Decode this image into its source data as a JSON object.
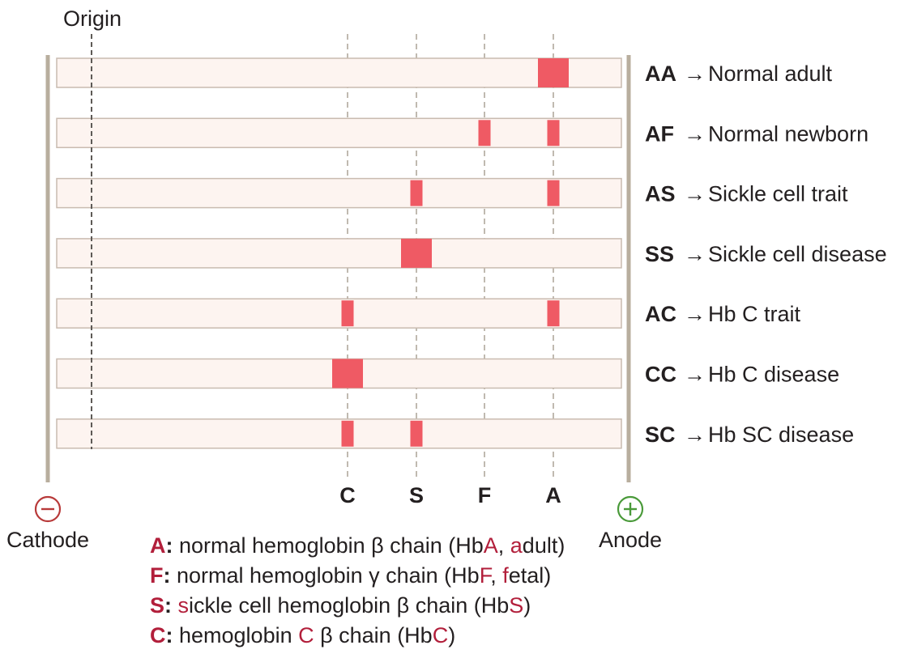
{
  "origin_label": "Origin",
  "cathode": {
    "label": "Cathode",
    "symbol": "−",
    "color": "#b83a3a"
  },
  "anode": {
    "label": "Anode",
    "symbol": "+",
    "color": "#4a9a3a"
  },
  "colors": {
    "band": "#ef5a64",
    "lane_fill": "#fdf4f0",
    "lane_stroke": "#c9bbb0",
    "electrode": "#b8ae9e",
    "guide": "#b0a89c",
    "highlight": "#b21f3b"
  },
  "markers": [
    {
      "key": "C",
      "pos": 0
    },
    {
      "key": "S",
      "pos": 1
    },
    {
      "key": "F",
      "pos": 2
    },
    {
      "key": "A",
      "pos": 3
    }
  ],
  "lanes": [
    {
      "genotype": "AA",
      "arrow": "→",
      "description": "Normal adult",
      "bands": [
        {
          "marker": "A",
          "size": "large"
        }
      ]
    },
    {
      "genotype": "AF",
      "arrow": "→",
      "description": "Normal newborn",
      "bands": [
        {
          "marker": "F",
          "size": "small"
        },
        {
          "marker": "A",
          "size": "small"
        }
      ]
    },
    {
      "genotype": "AS",
      "arrow": "→",
      "description": "Sickle cell trait",
      "bands": [
        {
          "marker": "S",
          "size": "small"
        },
        {
          "marker": "A",
          "size": "small"
        }
      ]
    },
    {
      "genotype": "SS",
      "arrow": "→",
      "description": "Sickle cell disease",
      "bands": [
        {
          "marker": "S",
          "size": "large"
        }
      ]
    },
    {
      "genotype": "AC",
      "arrow": "→",
      "description": "Hb C trait",
      "bands": [
        {
          "marker": "C",
          "size": "small"
        },
        {
          "marker": "A",
          "size": "small"
        }
      ]
    },
    {
      "genotype": "CC",
      "arrow": "→",
      "description": "Hb C disease",
      "bands": [
        {
          "marker": "C",
          "size": "large"
        }
      ]
    },
    {
      "genotype": "SC",
      "arrow": "→",
      "description": "Hb SC disease",
      "bands": [
        {
          "marker": "C",
          "size": "small"
        },
        {
          "marker": "S",
          "size": "small"
        }
      ]
    }
  ],
  "legend": [
    {
      "key": "A",
      "sep": ":",
      "parts": [
        {
          "text": " normal hemoglobin β chain (Hb",
          "hl": false
        },
        {
          "text": "A",
          "hl": true
        },
        {
          "text": ", ",
          "hl": false
        },
        {
          "text": "a",
          "hl": true
        },
        {
          "text": "dult)",
          "hl": false
        }
      ]
    },
    {
      "key": "F",
      "sep": ":",
      "parts": [
        {
          "text": " normal hemoglobin γ chain (Hb",
          "hl": false
        },
        {
          "text": "F",
          "hl": true
        },
        {
          "text": ", ",
          "hl": false
        },
        {
          "text": "f",
          "hl": true
        },
        {
          "text": "etal)",
          "hl": false
        }
      ]
    },
    {
      "key": "S",
      "sep": ":",
      "parts": [
        {
          "text": " ",
          "hl": false
        },
        {
          "text": "s",
          "hl": true
        },
        {
          "text": "ickle cell hemoglobin β chain (Hb",
          "hl": false
        },
        {
          "text": "S",
          "hl": true
        },
        {
          "text": ")",
          "hl": false
        }
      ]
    },
    {
      "key": "C",
      "sep": ":",
      "parts": [
        {
          "text": " hemoglobin ",
          "hl": false
        },
        {
          "text": "C",
          "hl": true
        },
        {
          "text": " β chain (Hb",
          "hl": false
        },
        {
          "text": "C",
          "hl": true
        },
        {
          "text": ")",
          "hl": false
        }
      ]
    }
  ]
}
